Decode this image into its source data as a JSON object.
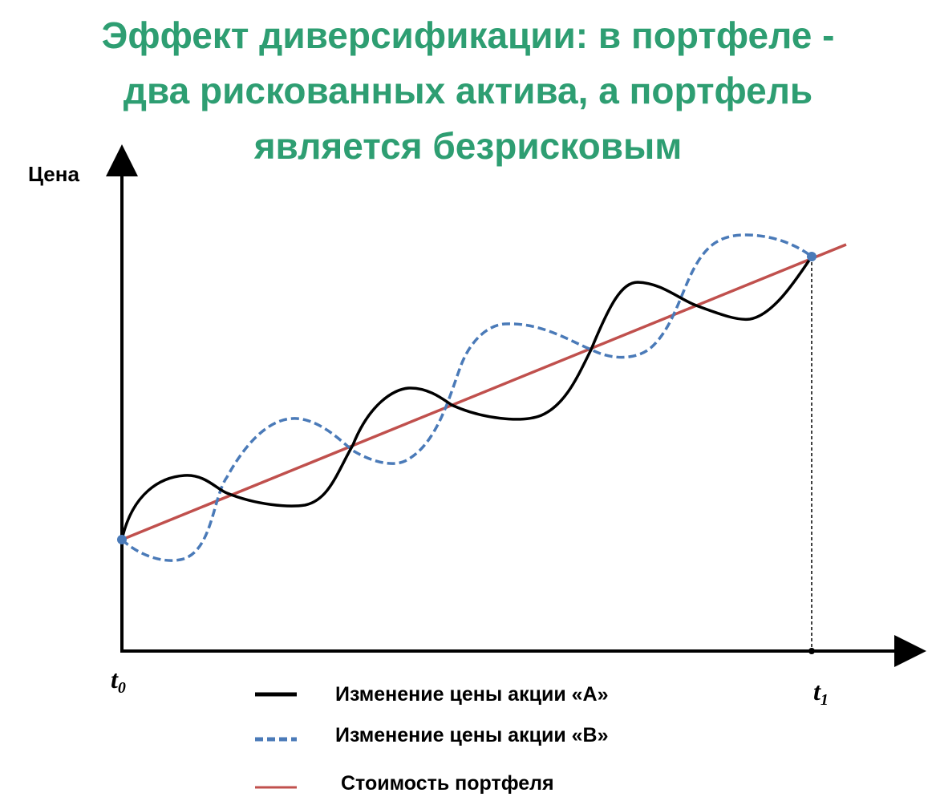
{
  "title": {
    "lines": [
      "Эффект диверсификации: в портфеле -",
      "два рискованных актива, а портфель",
      "является безрисковым"
    ],
    "color": "#2e9e72"
  },
  "chart_data": {
    "type": "line",
    "ylabel": "Цена",
    "x_tick_labels": {
      "start": "t0",
      "end": "t1"
    },
    "series": [
      {
        "name": "Изменение цены акции «А»",
        "color": "#000000",
        "style": "solid"
      },
      {
        "name": "Изменение цены акции «В»",
        "color": "#4a7ab8",
        "style": "dashed"
      },
      {
        "name": "Стоимость портфеля",
        "color": "#c0504d",
        "style": "solid"
      }
    ],
    "legend_position": "bottom",
    "point_color": "#4a7ab8"
  }
}
